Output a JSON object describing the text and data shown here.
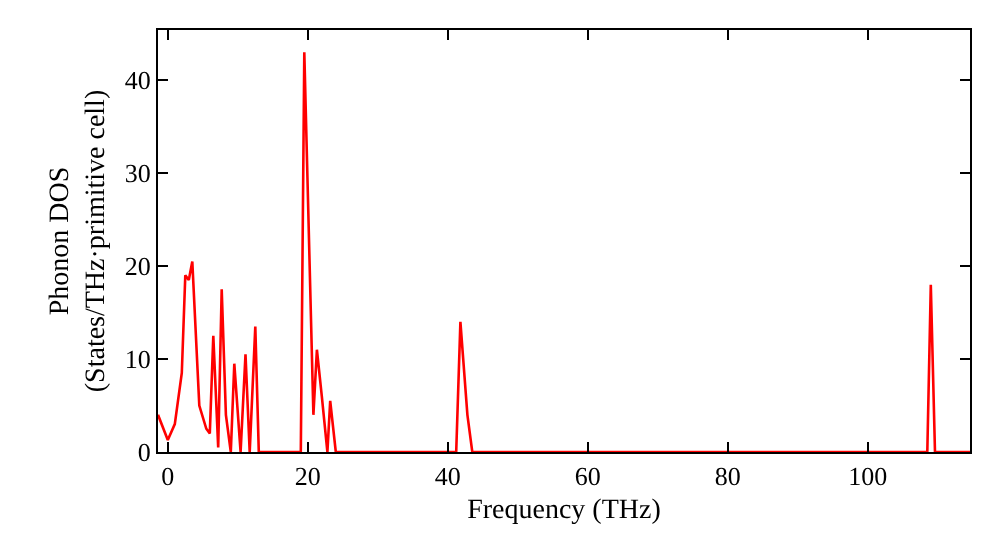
{
  "chart_data": {
    "type": "line",
    "xlabel": "Frequency (THz)",
    "ylabel": "Phonon DOS\n(States/THz·primitive cell)",
    "x": [
      -1.4,
      0,
      1,
      2,
      2.5,
      3,
      3.5,
      4.5,
      5.5,
      6,
      6.5,
      7.2,
      7.7,
      8.3,
      9,
      9.5,
      10.4,
      11.1,
      11.7,
      12.5,
      13,
      19,
      19.5,
      20.8,
      21.3,
      22,
      22.8,
      23.2,
      24,
      41.2,
      41.8,
      42.8,
      43.5,
      108.5,
      109,
      109.6,
      114.6
    ],
    "series": [
      {
        "color": "#ff0000",
        "values": [
          4,
          1.3,
          3,
          8.5,
          19,
          18.5,
          20.5,
          5,
          2.5,
          2,
          12.5,
          0.5,
          17.5,
          4,
          0,
          9.5,
          0,
          10.5,
          0,
          13.5,
          0,
          0,
          43,
          4,
          11,
          6,
          0,
          5.5,
          0,
          0,
          14,
          4,
          0,
          0,
          18,
          0,
          0
        ]
      }
    ],
    "xlim": [
      -1.4,
      114.6
    ],
    "ylim": [
      0,
      45.4
    ],
    "xticks": [
      0,
      20,
      40,
      60,
      80,
      100
    ],
    "yticks": [
      0,
      10,
      20,
      30,
      40
    ],
    "marker": "none",
    "line_style": "solid"
  }
}
